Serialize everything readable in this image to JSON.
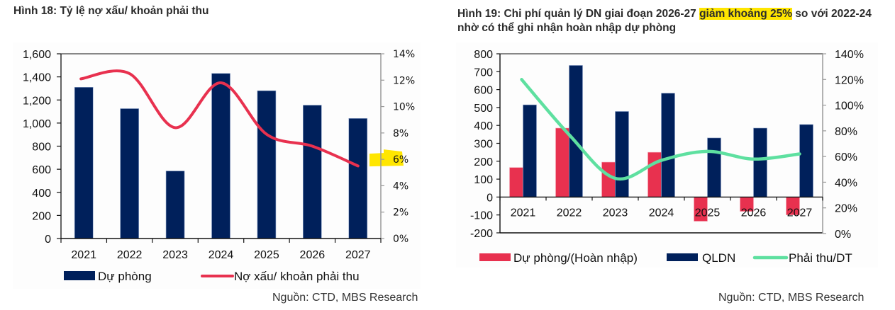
{
  "figures": {
    "fig18": {
      "title": "Hình 18: Tỷ lệ nợ xấu/ khoản phải thu",
      "source": "Nguồn: CTD, MBS Research"
    },
    "fig19": {
      "title_pre": "Hình 19: Chi phí quản lý DN giai đoạn 2026-27 ",
      "title_highlight": "giảm khoảng 25%",
      "title_post": " so với 2022-24 nhờ có thể ghi nhận hoàn nhập dự phòng",
      "source": "Nguồn: CTD, MBS Research"
    }
  },
  "colors": {
    "navy": "#00205b",
    "red": "#e8314f",
    "green": "#5ee0a0",
    "highlight": "#ffe600"
  },
  "chart_data": [
    {
      "type": "bar+line",
      "title": "Hình 18: Tỷ lệ nợ xấu/ khoản phải thu",
      "categories": [
        "2021",
        "2022",
        "2023",
        "2024",
        "2025",
        "2026",
        "2027"
      ],
      "series": [
        {
          "name": "Dự phòng",
          "type": "bar",
          "axis": "left",
          "color": "#00205b",
          "values": [
            1310,
            1125,
            585,
            1430,
            1280,
            1155,
            1040
          ]
        },
        {
          "name": "Nợ xấu/ khoản phải thu",
          "type": "line",
          "axis": "right",
          "color": "#e8314f",
          "values": [
            12.1,
            12.5,
            8.4,
            11.8,
            7.9,
            7.0,
            5.5
          ]
        }
      ],
      "y_left": {
        "min": 0,
        "max": 1600,
        "ticks": [
          0,
          200,
          400,
          600,
          800,
          1000,
          1200,
          1400,
          1600
        ],
        "tick_labels": [
          "0",
          "200",
          "400",
          "600",
          "800",
          "1,000",
          "1,200",
          "1,400",
          "1,600"
        ]
      },
      "y_right": {
        "min": 0,
        "max": 14,
        "ticks": [
          0,
          2,
          4,
          6,
          8,
          10,
          12,
          14
        ],
        "tick_labels": [
          "0%",
          "2%",
          "4%",
          "6%",
          "8%",
          "10%",
          "12%",
          "14%"
        ]
      },
      "highlighted_tick": "6%",
      "legend": "bottom",
      "grid": false
    },
    {
      "type": "bar+line",
      "title": "Hình 19: Chi phí quản lý DN giai đoạn 2026-27 giảm khoảng 25% so với 2022-24 nhờ có thể ghi nhận hoàn nhập dự phòng",
      "categories": [
        "2021",
        "2022",
        "2023",
        "2024",
        "2025",
        "2026",
        "2027"
      ],
      "series": [
        {
          "name": "Dự phòng/(Hoàn nhập)",
          "type": "bar",
          "axis": "left",
          "color": "#e8314f",
          "values": [
            165,
            385,
            195,
            250,
            -135,
            -80,
            -100
          ]
        },
        {
          "name": "QLDN",
          "type": "bar",
          "axis": "left",
          "color": "#00205b",
          "values": [
            515,
            735,
            478,
            580,
            330,
            385,
            405
          ]
        },
        {
          "name": "Phải thu/DT",
          "type": "line",
          "axis": "right",
          "color": "#5ee0a0",
          "values": [
            120,
            77,
            43,
            57,
            64,
            58,
            62
          ]
        }
      ],
      "y_left": {
        "min": -200,
        "max": 800,
        "ticks": [
          -200,
          -100,
          0,
          100,
          200,
          300,
          400,
          500,
          600,
          700,
          800
        ],
        "tick_labels": [
          "-200",
          "-100",
          "0",
          "100",
          "200",
          "300",
          "400",
          "500",
          "600",
          "700",
          "800"
        ]
      },
      "y_right": {
        "min": 0,
        "max": 140,
        "ticks": [
          0,
          20,
          40,
          60,
          80,
          100,
          120,
          140
        ],
        "tick_labels": [
          "0%",
          "20%",
          "40%",
          "60%",
          "80%",
          "100%",
          "120%",
          "140%"
        ]
      },
      "legend": "bottom",
      "grid": false
    }
  ]
}
